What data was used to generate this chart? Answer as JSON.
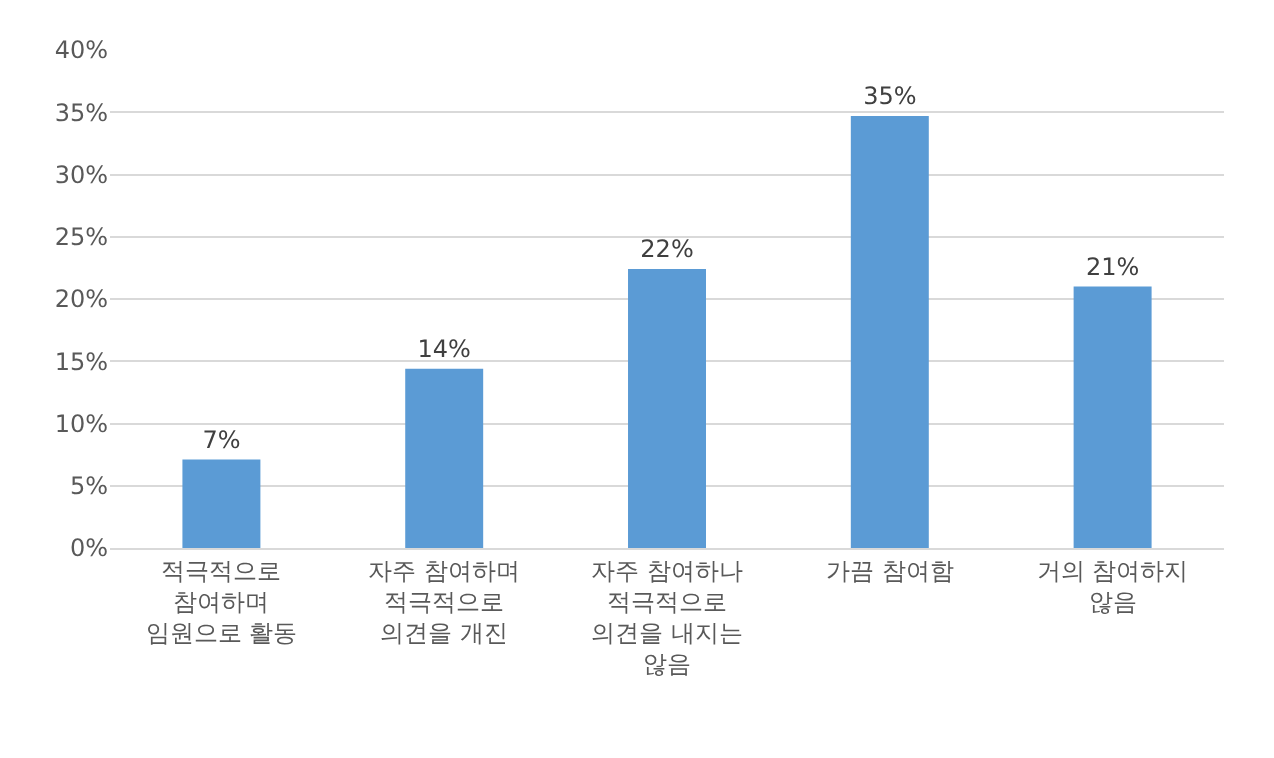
{
  "chart_data": {
    "type": "bar",
    "categories": [
      "적극적으로 참여하며 임원으로 활동",
      "자주 참여하며 적극적으로 의견을 개진",
      "자주 참여하나 적극적으로 의견을 내지는 않음",
      "가끔 참여함",
      "거의 참여하지 않음"
    ],
    "values": [
      7.1,
      14.4,
      22.4,
      34.7,
      21.0
    ],
    "value_labels": [
      "7%",
      "14%",
      "22%",
      "35%",
      "21%"
    ],
    "color": "#5b9bd5",
    "ylim": [
      0,
      40
    ],
    "yticks": [
      {
        "value": 0,
        "label": "0%"
      },
      {
        "value": 5,
        "label": "5%"
      },
      {
        "value": 10,
        "label": "10%"
      },
      {
        "value": 15,
        "label": "15%"
      },
      {
        "value": 20,
        "label": "20%"
      },
      {
        "value": 25,
        "label": "25%"
      },
      {
        "value": 30,
        "label": "30%"
      },
      {
        "value": 35,
        "label": "35%"
      },
      {
        "value": 40,
        "label": "40%"
      }
    ],
    "grid": "y"
  }
}
